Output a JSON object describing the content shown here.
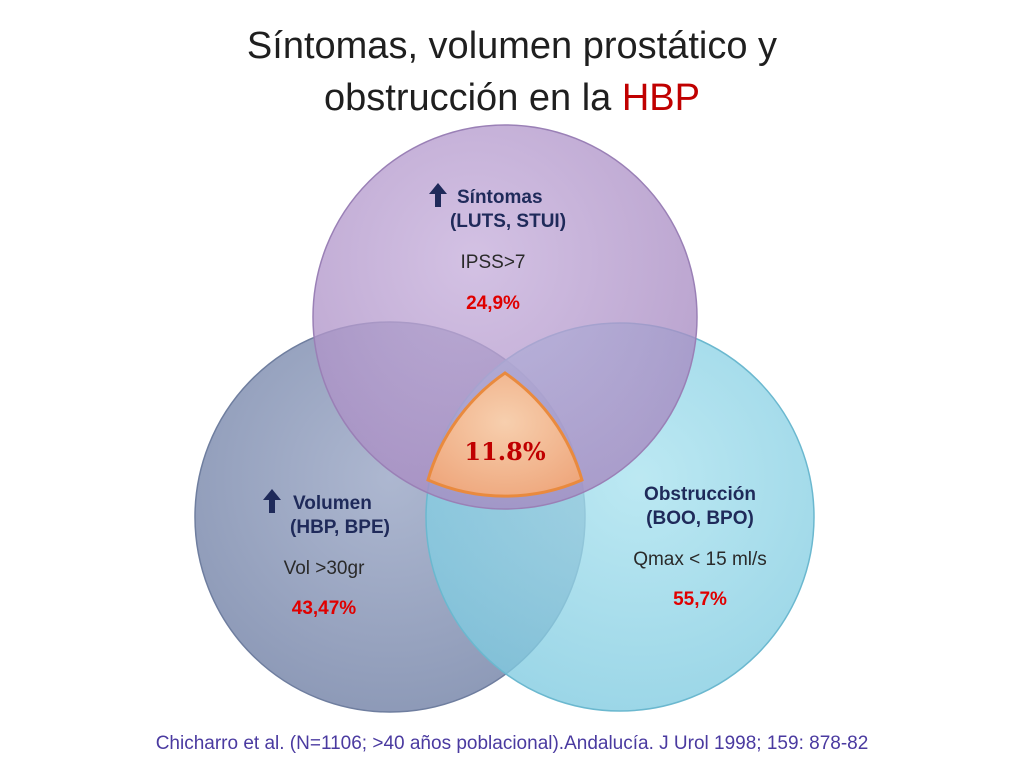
{
  "title": {
    "line1": "Síntomas, volumen prostático y",
    "line2_prefix": "obstrucción en la ",
    "line2_accent": "HBP"
  },
  "colors": {
    "sintomas": "#b79ccc",
    "volumen": "#8c9ab8",
    "obstruccion": "#8fd6e8",
    "center": "#f2b58a",
    "accent": "#c00000"
  },
  "diagram": {
    "sintomas": {
      "arrow_icon": "up-arrow-icon",
      "heading": "Síntomas",
      "sub": "(LUTS, STUI)",
      "criterion": "IPSS>7",
      "value": "24,9%"
    },
    "volumen": {
      "arrow_icon": "up-arrow-icon",
      "heading": "Volumen",
      "sub": "(HBP,  BPE)",
      "criterion": "Vol >30gr",
      "value": "43,47%"
    },
    "obstruccion": {
      "heading": "Obstrucción",
      "sub": "(BOO, BPO)",
      "criterion": "Qmax < 15 ml/s",
      "value": "55,7%"
    },
    "overlap": {
      "value": "11.8%"
    }
  },
  "citation": "Chicharro et al. (N=1106; >40 años poblacional).Andalucía. J Urol 1998; 159: 878-82"
}
